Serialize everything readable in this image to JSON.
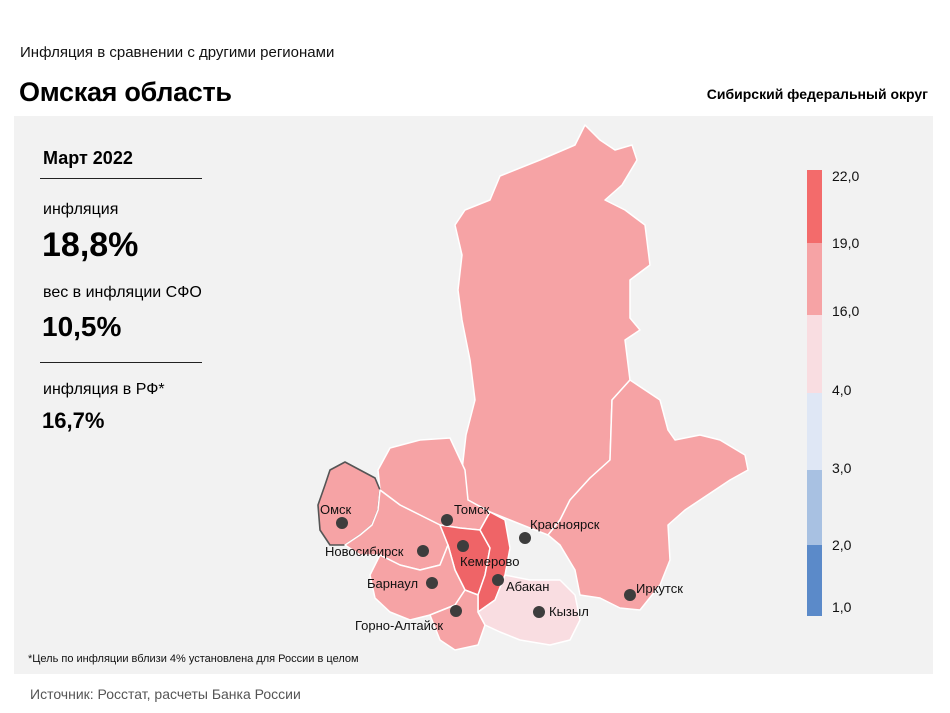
{
  "header": {
    "subtitle": "Инфляция в сравнении с другими регионами",
    "title": "Омская область",
    "district": "Сибирский федеральный округ"
  },
  "stats": {
    "period": "Март 2022",
    "inflation_label": "инфляция",
    "inflation_value": "18,8%",
    "weight_label": "вес в инфляции СФО",
    "weight_value": "10,5%",
    "rf_label": "инфляция в РФ*",
    "rf_value": "16,7%"
  },
  "legend": {
    "ticks": [
      "22,0",
      "19,0",
      "16,0",
      "4,0",
      "3,0",
      "2,0",
      "1,0"
    ],
    "colors": [
      "#f36b6b",
      "#f6a3a5",
      "#f9dde1",
      "#dfe7f5",
      "#a8c1e2",
      "#5b8ac9"
    ]
  },
  "map": {
    "colors": {
      "bin_16_19": "#f6a3a5",
      "bin_19_22": "#ef6467",
      "bin_4_16": "#f9dde1",
      "border": "#ffffff",
      "selected_outline": "#555555",
      "city_dot": "#3d3d3d"
    },
    "cities": [
      {
        "name": "Омск",
        "region_bin": "16,0–19,0"
      },
      {
        "name": "Томск",
        "region_bin": "16,0–19,0"
      },
      {
        "name": "Новосибирск",
        "region_bin": "16,0–19,0"
      },
      {
        "name": "Кемерово",
        "region_bin": "19,0–22,0"
      },
      {
        "name": "Красноярск",
        "region_bin": "16,0–19,0"
      },
      {
        "name": "Абакан",
        "region_bin": "19,0–22,0"
      },
      {
        "name": "Барнаул",
        "region_bin": "16,0–19,0"
      },
      {
        "name": "Горно-Алтайск",
        "region_bin": "16,0–19,0"
      },
      {
        "name": "Кызыл",
        "region_bin": "4,0–16,0"
      },
      {
        "name": "Иркутск",
        "region_bin": "16,0–19,0"
      }
    ]
  },
  "footnote": "*Цель по инфляции вблизи 4% установлена для России в целом",
  "source": "Источник: Росстат, расчеты Банка России"
}
